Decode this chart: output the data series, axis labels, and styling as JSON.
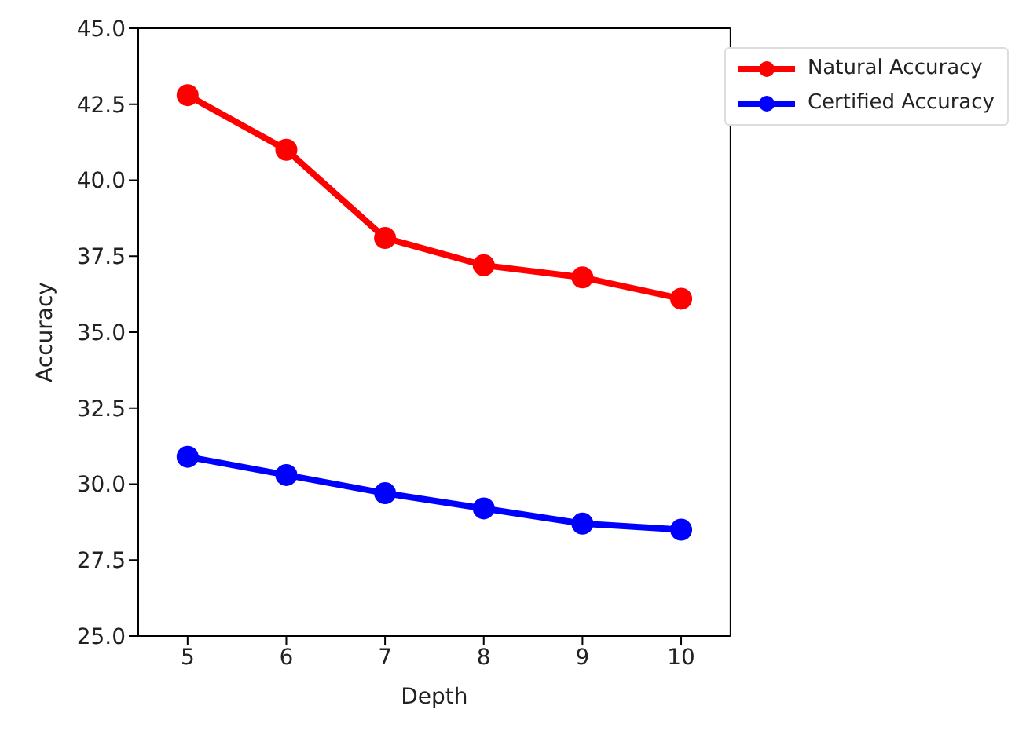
{
  "chart_data": {
    "type": "line",
    "xlabel": "Depth",
    "ylabel": "Accuracy",
    "x": [
      5,
      6,
      7,
      8,
      9,
      10
    ],
    "series": [
      {
        "name": "Natural Accuracy",
        "color": "#ff0000",
        "values": [
          42.8,
          41.0,
          38.1,
          37.2,
          36.8,
          36.1
        ]
      },
      {
        "name": "Certified Accuracy",
        "color": "#0000ff",
        "values": [
          30.9,
          30.3,
          29.7,
          29.2,
          28.7,
          28.5
        ]
      }
    ],
    "xlim": [
      4.5,
      10.5
    ],
    "xticks": [
      5,
      6,
      7,
      8,
      9,
      10
    ],
    "ylim": [
      25,
      45
    ],
    "yticks": [
      {
        "value": 25,
        "label": "25.0"
      },
      27.5,
      {
        "value": 30,
        "label": "30.0"
      },
      32.5,
      {
        "value": 35,
        "label": "35.0"
      },
      37.5,
      {
        "value": 40,
        "label": "40.0"
      },
      42.5,
      {
        "value": 45,
        "label": "45.0"
      }
    ],
    "grid": false,
    "legend": "top right",
    "marker": "circle",
    "line_style": "solid"
  }
}
